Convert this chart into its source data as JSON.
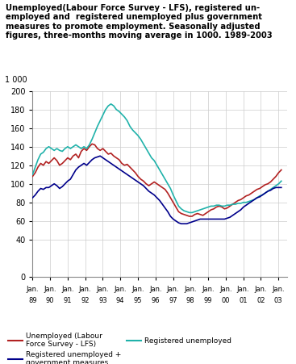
{
  "title": "Unemployed(Labour Force Survey - LFS), registered un-\nemployed and  registered unemployed plus government\nmeasures to promote employment. Seasonally adjusted\nfigures, three-months moving average in 1000. 1989-2003",
  "ylabel": "1 000",
  "ylim": [
    0,
    200
  ],
  "yticks": [
    0,
    40,
    60,
    80,
    100,
    120,
    140,
    160,
    180,
    200
  ],
  "color_lfs": "#b22222",
  "color_reg": "#20b2aa",
  "color_gov": "#00008b",
  "legend_lfs": "Unemployed (Labour\nForce Survey - LFS)",
  "legend_reg": "Registered unemployed",
  "legend_gov": "Registered unemployed +\ngovernment measures",
  "lfs": [
    108,
    112,
    118,
    122,
    120,
    124,
    122,
    125,
    128,
    125,
    120,
    122,
    125,
    128,
    126,
    130,
    132,
    128,
    135,
    138,
    136,
    140,
    143,
    142,
    138,
    136,
    138,
    135,
    132,
    133,
    130,
    128,
    126,
    122,
    120,
    121,
    118,
    115,
    112,
    108,
    105,
    103,
    100,
    98,
    100,
    102,
    100,
    98,
    96,
    94,
    90,
    85,
    80,
    75,
    70,
    68,
    67,
    66,
    65,
    65,
    67,
    68,
    67,
    66,
    68,
    70,
    72,
    73,
    75,
    76,
    75,
    73,
    74,
    76,
    78,
    80,
    82,
    83,
    85,
    87,
    88,
    90,
    92,
    94,
    95,
    97,
    99,
    100,
    102,
    105,
    108,
    112,
    115
  ],
  "reg": [
    110,
    118,
    126,
    132,
    134,
    138,
    140,
    138,
    136,
    138,
    136,
    135,
    138,
    140,
    138,
    140,
    142,
    140,
    138,
    140,
    138,
    142,
    148,
    155,
    162,
    168,
    174,
    180,
    184,
    186,
    184,
    180,
    178,
    175,
    172,
    168,
    162,
    158,
    155,
    152,
    148,
    143,
    138,
    133,
    128,
    125,
    120,
    115,
    110,
    105,
    100,
    95,
    88,
    82,
    76,
    73,
    71,
    70,
    69,
    69,
    70,
    71,
    72,
    73,
    74,
    75,
    76,
    76,
    77,
    77,
    76,
    76,
    77,
    77,
    78,
    78,
    79,
    79,
    80,
    80,
    81,
    82,
    83,
    85,
    87,
    88,
    90,
    92,
    94,
    96,
    98,
    100,
    103
  ],
  "gov": [
    85,
    88,
    92,
    95,
    94,
    96,
    96,
    98,
    100,
    98,
    95,
    97,
    100,
    103,
    105,
    110,
    115,
    118,
    120,
    122,
    120,
    123,
    126,
    128,
    129,
    130,
    128,
    126,
    124,
    122,
    120,
    118,
    116,
    114,
    112,
    110,
    108,
    106,
    104,
    102,
    100,
    98,
    95,
    92,
    90,
    88,
    85,
    82,
    78,
    74,
    70,
    65,
    62,
    60,
    58,
    57,
    57,
    57,
    58,
    59,
    60,
    61,
    62,
    62,
    62,
    62,
    62,
    62,
    62,
    62,
    62,
    62,
    63,
    64,
    66,
    68,
    70,
    72,
    75,
    77,
    79,
    81,
    83,
    85,
    86,
    88,
    90,
    92,
    93,
    95,
    96,
    96,
    96
  ],
  "xtick_years": [
    89,
    90,
    91,
    92,
    93,
    94,
    95,
    96,
    97,
    98,
    99,
    "00",
    "01",
    "02",
    "03"
  ]
}
